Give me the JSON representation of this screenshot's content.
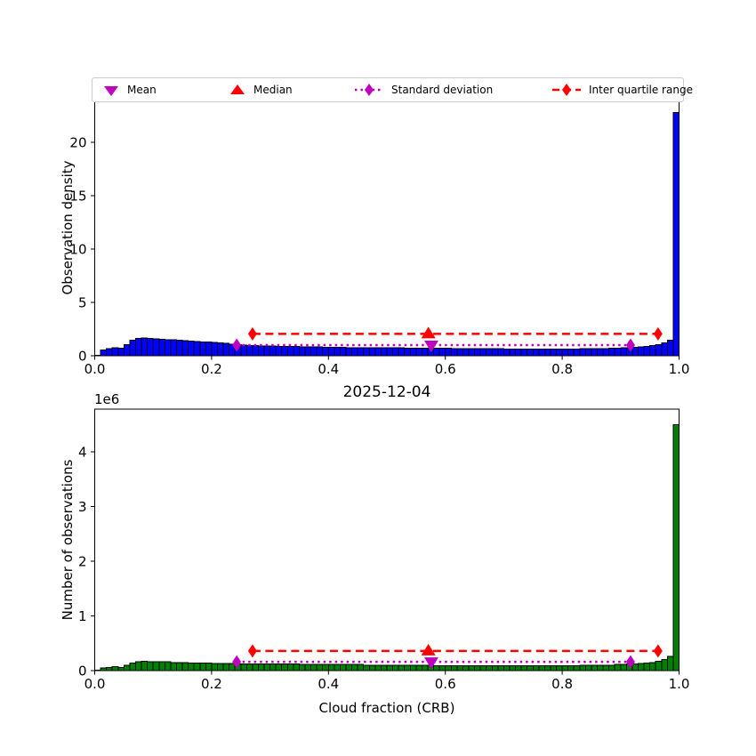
{
  "figure": {
    "background": "#ffffff"
  },
  "legend": {
    "items": [
      {
        "label": "Mean",
        "marker": "triangle-down",
        "color": "#bf00bf"
      },
      {
        "label": "Median",
        "marker": "triangle-up",
        "color": "#ff0000"
      },
      {
        "label": "Standard deviation",
        "marker": "diamond-dotted-line",
        "color": "#bf00bf"
      },
      {
        "label": "Inter quartile range",
        "marker": "diamond-dashed-line",
        "color": "#ff0000"
      }
    ]
  },
  "chart_data": [
    {
      "type": "bar",
      "subtitle": "",
      "ylabel": "Observation density",
      "xlabel": "",
      "bin_start": 0.0,
      "bin_width": 0.01,
      "bar_color": "#0000ff",
      "bar_edge": "#000000",
      "xlim": [
        0.0,
        1.0
      ],
      "ylim": [
        0,
        23.9
      ],
      "grid": false,
      "xticks": [
        0.0,
        0.2,
        0.4,
        0.6,
        0.8,
        1.0
      ],
      "xtick_labels": [
        "0.0",
        "0.2",
        "0.4",
        "0.6",
        "0.8",
        "1.0"
      ],
      "yticks": [
        0,
        5,
        10,
        15,
        20
      ],
      "ytick_labels": [
        "0",
        "5",
        "10",
        "15",
        "20"
      ],
      "values": [
        0.05,
        0.55,
        0.68,
        0.75,
        0.7,
        1.05,
        1.45,
        1.63,
        1.66,
        1.62,
        1.58,
        1.55,
        1.52,
        1.49,
        1.46,
        1.42,
        1.38,
        1.34,
        1.31,
        1.28,
        1.24,
        1.2,
        1.15,
        1.1,
        1.05,
        1.0,
        0.97,
        0.95,
        0.93,
        0.91,
        0.9,
        0.89,
        0.88,
        0.87,
        0.86,
        0.85,
        0.84,
        0.83,
        0.82,
        0.81,
        0.8,
        0.79,
        0.78,
        0.77,
        0.77,
        0.76,
        0.76,
        0.75,
        0.75,
        0.74,
        0.74,
        0.73,
        0.73,
        0.72,
        0.72,
        0.71,
        0.71,
        0.7,
        0.7,
        0.69,
        0.69,
        0.68,
        0.68,
        0.67,
        0.67,
        0.66,
        0.66,
        0.65,
        0.65,
        0.65,
        0.64,
        0.64,
        0.64,
        0.63,
        0.63,
        0.63,
        0.63,
        0.63,
        0.63,
        0.63,
        0.63,
        0.64,
        0.64,
        0.65,
        0.65,
        0.66,
        0.67,
        0.68,
        0.69,
        0.71,
        0.73,
        0.76,
        0.79,
        0.83,
        0.88,
        0.95,
        1.05,
        1.2,
        1.45,
        22.8
      ],
      "stat_colors": {
        "mean": "#bf00bf",
        "median": "#ff0000"
      },
      "stats": {
        "mean": 0.576,
        "median": 0.571,
        "std_low": 0.243,
        "std_high": 0.917,
        "iqr_low": 0.27,
        "iqr_high": 0.964,
        "std_line_y": 1.0,
        "iqr_line_y": 2.05
      }
    },
    {
      "type": "bar",
      "title": "2025-12-04",
      "ylabel": "Number of observations",
      "xlabel": "Cloud fraction (CRB)",
      "offset_text": "1e6",
      "values_unit": "1e6 observations",
      "bin_start": 0.0,
      "bin_width": 0.01,
      "bar_color": "#008000",
      "bar_edge": "#000000",
      "xlim": [
        0.0,
        1.0
      ],
      "ylim": [
        0,
        4.78
      ],
      "grid": false,
      "xticks": [
        0.0,
        0.2,
        0.4,
        0.6,
        0.8,
        1.0
      ],
      "xtick_labels": [
        "0.0",
        "0.2",
        "0.4",
        "0.6",
        "0.8",
        "1.0"
      ],
      "yticks": [
        0,
        1,
        2,
        3,
        4
      ],
      "ytick_labels": [
        "0",
        "1",
        "2",
        "3",
        "4"
      ],
      "values": [
        0.01,
        0.05,
        0.06,
        0.07,
        0.06,
        0.1,
        0.14,
        0.16,
        0.17,
        0.16,
        0.16,
        0.16,
        0.16,
        0.15,
        0.15,
        0.15,
        0.14,
        0.14,
        0.14,
        0.14,
        0.13,
        0.13,
        0.13,
        0.13,
        0.12,
        0.12,
        0.12,
        0.12,
        0.12,
        0.12,
        0.12,
        0.12,
        0.12,
        0.12,
        0.12,
        0.11,
        0.11,
        0.11,
        0.11,
        0.11,
        0.11,
        0.11,
        0.11,
        0.11,
        0.11,
        0.11,
        0.1,
        0.1,
        0.1,
        0.1,
        0.1,
        0.1,
        0.1,
        0.1,
        0.1,
        0.1,
        0.1,
        0.1,
        0.09,
        0.09,
        0.09,
        0.09,
        0.09,
        0.09,
        0.09,
        0.09,
        0.09,
        0.09,
        0.09,
        0.09,
        0.09,
        0.09,
        0.09,
        0.09,
        0.09,
        0.09,
        0.09,
        0.09,
        0.09,
        0.09,
        0.09,
        0.09,
        0.09,
        0.1,
        0.1,
        0.1,
        0.1,
        0.1,
        0.1,
        0.11,
        0.11,
        0.12,
        0.12,
        0.13,
        0.14,
        0.15,
        0.17,
        0.2,
        0.26,
        4.5
      ],
      "stat_colors": {
        "mean": "#bf00bf",
        "median": "#ff0000"
      },
      "stats": {
        "mean": 0.576,
        "median": 0.571,
        "std_low": 0.243,
        "std_high": 0.917,
        "iqr_low": 0.27,
        "iqr_high": 0.964,
        "std_line_y": 0.16,
        "iqr_line_y": 0.36
      }
    }
  ]
}
